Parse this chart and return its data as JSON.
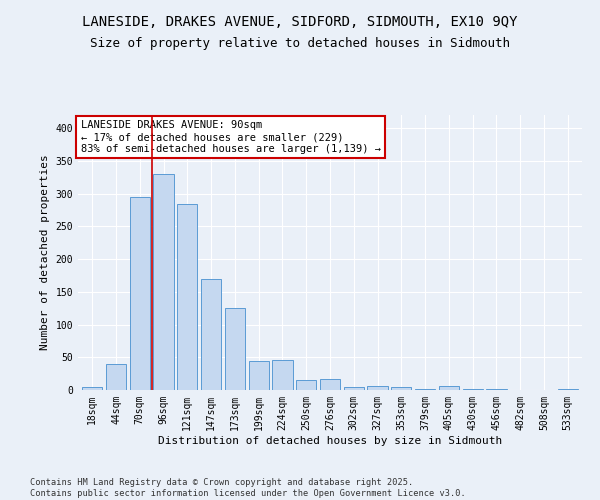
{
  "title_line1": "LANESIDE, DRAKES AVENUE, SIDFORD, SIDMOUTH, EX10 9QY",
  "title_line2": "Size of property relative to detached houses in Sidmouth",
  "xlabel": "Distribution of detached houses by size in Sidmouth",
  "ylabel": "Number of detached properties",
  "footnote": "Contains HM Land Registry data © Crown copyright and database right 2025.\nContains public sector information licensed under the Open Government Licence v3.0.",
  "categories": [
    "18sqm",
    "44sqm",
    "70sqm",
    "96sqm",
    "121sqm",
    "147sqm",
    "173sqm",
    "199sqm",
    "224sqm",
    "250sqm",
    "276sqm",
    "302sqm",
    "327sqm",
    "353sqm",
    "379sqm",
    "405sqm",
    "430sqm",
    "456sqm",
    "482sqm",
    "508sqm",
    "533sqm"
  ],
  "values": [
    4,
    39,
    295,
    330,
    284,
    169,
    125,
    45,
    46,
    15,
    17,
    4,
    6,
    4,
    2,
    6,
    2,
    1,
    0,
    0,
    1
  ],
  "bar_color": "#c5d8f0",
  "bar_edge_color": "#5b9bd5",
  "vline_x": 2.5,
  "vline_label": "LANESIDE DRAKES AVENUE: 90sqm",
  "annotation_line2": "← 17% of detached houses are smaller (229)",
  "annotation_line3": "83% of semi-detached houses are larger (1,139) →",
  "annotation_box_color": "#ffffff",
  "annotation_box_edge": "#cc0000",
  "vline_color": "#cc0000",
  "bg_color": "#eaf0f8",
  "grid_color": "#ffffff",
  "ylim": [
    0,
    420
  ],
  "yticks": [
    0,
    50,
    100,
    150,
    200,
    250,
    300,
    350,
    400
  ],
  "title_fontsize": 10,
  "subtitle_fontsize": 9,
  "axis_label_fontsize": 8,
  "tick_fontsize": 7,
  "annotation_fontsize": 7.5
}
